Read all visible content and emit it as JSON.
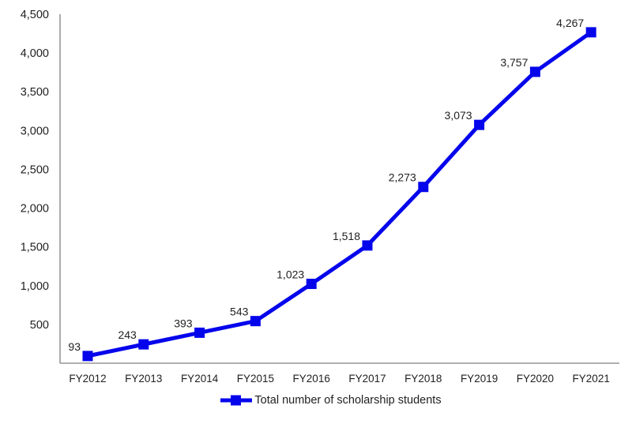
{
  "chart_data": {
    "type": "line",
    "title": "",
    "xlabel": "",
    "ylabel": "",
    "categories": [
      "FY2012",
      "FY2013",
      "FY2014",
      "FY2015",
      "FY2016",
      "FY2017",
      "FY2018",
      "FY2019",
      "FY2020",
      "FY2021"
    ],
    "series": [
      {
        "name": "Total number of scholarship students",
        "values": [
          93,
          243,
          393,
          543,
          1023,
          1518,
          2273,
          3073,
          3757,
          4267
        ],
        "data_labels": [
          "93",
          "243",
          "393",
          "543",
          "1,023",
          "1,518",
          "2,273",
          "3,073",
          "3,757",
          "4,267"
        ],
        "color": "#0505ec",
        "marker": "square"
      }
    ],
    "y_axis": {
      "min": 0,
      "max": 4500,
      "tick_interval": 500,
      "tick_values": [
        500,
        1000,
        1500,
        2000,
        2500,
        3000,
        3500,
        4000,
        4500
      ],
      "tick_labels": [
        "500",
        "1,000",
        "1,500",
        "2,000",
        "2,500",
        "3,000",
        "3,500",
        "4,000",
        "4,500"
      ]
    },
    "grid": false,
    "legend_position": "bottom",
    "colors": {
      "axis": "#808080",
      "text": "#1f1f1f",
      "background": "#ffffff"
    }
  }
}
